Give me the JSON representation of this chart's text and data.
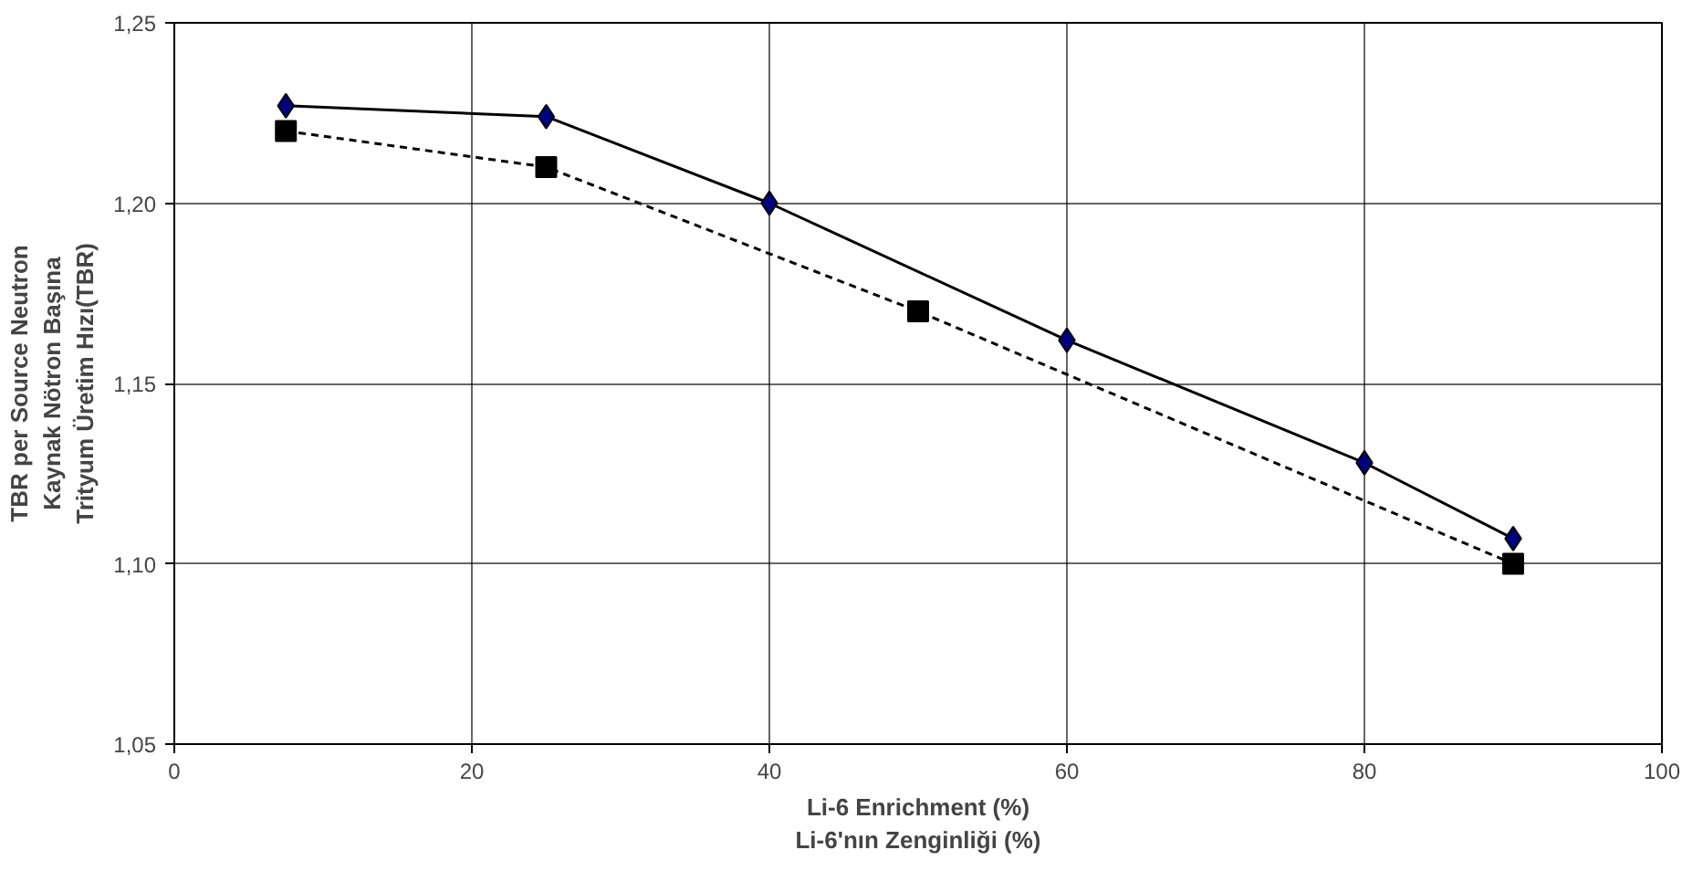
{
  "chart_data": {
    "type": "line",
    "xlabel": "Li-6 Enrichment (%)\nLi-6'nın Zenginliği (%)",
    "ylabel": "TBR per Source Neutron\nKaynak Nötron Başına\nTrityum Üretim Hızı(TBR)",
    "xlim": [
      0,
      100
    ],
    "xticks": [
      0,
      20,
      40,
      60,
      80,
      100
    ],
    "ylim": [
      1.05,
      1.25
    ],
    "yticks": [
      {
        "value": 1.05,
        "label": "1,05"
      },
      {
        "value": 1.1,
        "label": "1,10"
      },
      {
        "value": 1.15,
        "label": "1,15"
      },
      {
        "value": 1.2,
        "label": "1,20"
      },
      {
        "value": 1.25,
        "label": "1,25"
      }
    ],
    "grid": true,
    "series": [
      {
        "color": "#000080",
        "marker": "diamond",
        "line_style": "solid",
        "x": [
          7.5,
          25,
          40,
          60,
          80,
          90
        ],
        "values": [
          1.227,
          1.224,
          1.2,
          1.162,
          1.128,
          1.107
        ]
      },
      {
        "color": "#000000",
        "marker": "square",
        "line_style": "dashed",
        "x": [
          7.5,
          25,
          50,
          90
        ],
        "values": [
          1.22,
          1.21,
          1.17,
          1.1
        ]
      }
    ]
  }
}
